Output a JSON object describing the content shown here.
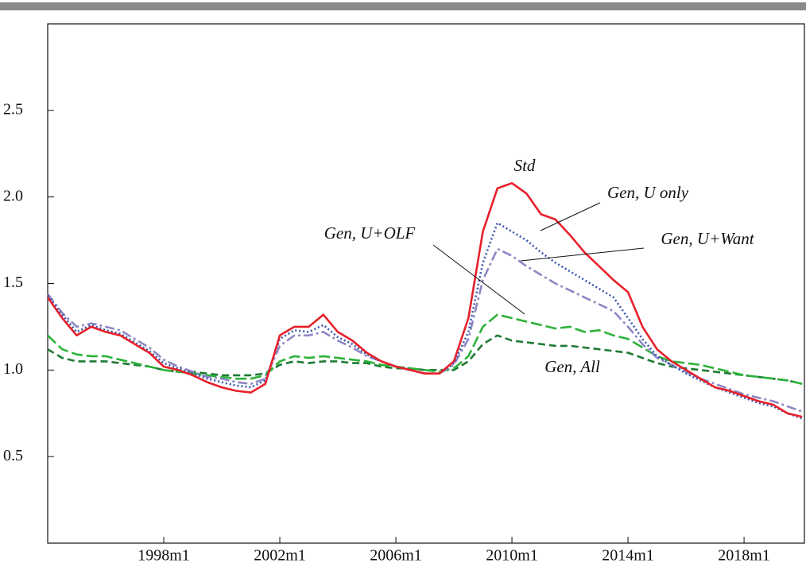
{
  "chart_data": {
    "type": "line",
    "x": [
      1994.0,
      1994.5,
      1995.0,
      1995.5,
      1996.0,
      1996.5,
      1997.0,
      1997.5,
      1998.0,
      1998.5,
      1999.0,
      1999.5,
      2000.0,
      2000.5,
      2001.0,
      2001.5,
      2002.0,
      2002.5,
      2003.0,
      2003.5,
      2004.0,
      2004.5,
      2005.0,
      2005.5,
      2006.0,
      2006.5,
      2007.0,
      2007.5,
      2008.0,
      2008.5,
      2009.0,
      2009.5,
      2010.0,
      2010.5,
      2011.0,
      2011.5,
      2012.0,
      2012.5,
      2013.0,
      2013.5,
      2014.0,
      2014.5,
      2015.0,
      2015.5,
      2016.0,
      2016.5,
      2017.0,
      2017.5,
      2018.0,
      2018.5,
      2019.0,
      2019.5,
      2020.0
    ],
    "series": [
      {
        "name": "Std",
        "color": "#e8202a",
        "values": [
          1.42,
          1.3,
          1.2,
          1.25,
          1.22,
          1.2,
          1.15,
          1.1,
          1.02,
          1.0,
          0.97,
          0.93,
          0.9,
          0.88,
          0.87,
          0.92,
          1.2,
          1.25,
          1.25,
          1.32,
          1.22,
          1.17,
          1.1,
          1.05,
          1.02,
          1.0,
          0.98,
          0.98,
          1.05,
          1.3,
          1.8,
          2.05,
          2.08,
          2.02,
          1.9,
          1.87,
          1.78,
          1.68,
          1.6,
          1.52,
          1.45,
          1.25,
          1.12,
          1.05,
          1.0,
          0.95,
          0.9,
          0.88,
          0.85,
          0.82,
          0.8,
          0.75,
          0.73
        ]
      },
      {
        "name": "Gen, U only",
        "color": "#3a55b0",
        "values": [
          1.43,
          1.32,
          1.22,
          1.26,
          1.23,
          1.21,
          1.16,
          1.11,
          1.04,
          1.01,
          0.98,
          0.95,
          0.93,
          0.91,
          0.9,
          0.94,
          1.18,
          1.23,
          1.22,
          1.26,
          1.19,
          1.15,
          1.09,
          1.05,
          1.02,
          1.0,
          0.98,
          0.98,
          1.04,
          1.22,
          1.62,
          1.85,
          1.8,
          1.75,
          1.68,
          1.62,
          1.57,
          1.52,
          1.47,
          1.42,
          1.3,
          1.18,
          1.08,
          1.03,
          0.98,
          0.94,
          0.9,
          0.87,
          0.84,
          0.81,
          0.79,
          0.75,
          0.72
        ]
      },
      {
        "name": "Gen, U+Want",
        "color": "#8c88c4",
        "values": [
          1.44,
          1.33,
          1.25,
          1.27,
          1.25,
          1.23,
          1.18,
          1.13,
          1.06,
          1.02,
          0.99,
          0.96,
          0.95,
          0.93,
          0.92,
          0.95,
          1.14,
          1.2,
          1.2,
          1.22,
          1.17,
          1.13,
          1.08,
          1.05,
          1.02,
          1.0,
          0.98,
          0.98,
          1.03,
          1.18,
          1.52,
          1.7,
          1.66,
          1.6,
          1.55,
          1.5,
          1.46,
          1.42,
          1.38,
          1.34,
          1.25,
          1.15,
          1.07,
          1.03,
          0.99,
          0.95,
          0.92,
          0.89,
          0.86,
          0.84,
          0.82,
          0.79,
          0.76
        ]
      },
      {
        "name": "Gen, U+OLF",
        "color": "#2db23a",
        "values": [
          1.2,
          1.12,
          1.09,
          1.08,
          1.08,
          1.06,
          1.04,
          1.02,
          1.0,
          0.99,
          0.98,
          0.97,
          0.96,
          0.95,
          0.95,
          0.97,
          1.05,
          1.08,
          1.07,
          1.08,
          1.07,
          1.06,
          1.05,
          1.03,
          1.02,
          1.01,
          1.0,
          0.99,
          1.01,
          1.08,
          1.25,
          1.32,
          1.3,
          1.28,
          1.26,
          1.24,
          1.25,
          1.22,
          1.23,
          1.2,
          1.18,
          1.13,
          1.08,
          1.05,
          1.04,
          1.03,
          1.01,
          0.99,
          0.97,
          0.96,
          0.95,
          0.94,
          0.92
        ]
      },
      {
        "name": "Gen, All",
        "color": "#1e7a34",
        "values": [
          1.12,
          1.07,
          1.05,
          1.05,
          1.05,
          1.04,
          1.03,
          1.02,
          1.0,
          0.99,
          0.99,
          0.98,
          0.97,
          0.97,
          0.97,
          0.98,
          1.03,
          1.05,
          1.04,
          1.05,
          1.05,
          1.04,
          1.04,
          1.02,
          1.01,
          1.01,
          1.0,
          1.0,
          1.0,
          1.05,
          1.15,
          1.2,
          1.17,
          1.16,
          1.15,
          1.14,
          1.14,
          1.13,
          1.12,
          1.11,
          1.1,
          1.07,
          1.04,
          1.02,
          1.01,
          1.0,
          0.99,
          0.98,
          0.97,
          0.96,
          0.95,
          0.94,
          0.92
        ]
      }
    ],
    "xlim": [
      1994,
      2020.08
    ],
    "xticks": [
      {
        "value": 1998,
        "label": "1998m1"
      },
      {
        "value": 2002,
        "label": "2002m1"
      },
      {
        "value": 2006,
        "label": "2006m1"
      },
      {
        "value": 2010,
        "label": "2010m1"
      },
      {
        "value": 2014,
        "label": "2014m1"
      },
      {
        "value": 2018,
        "label": "2018m1"
      }
    ],
    "ylim": [
      0,
      3
    ],
    "yticks": [
      0.5,
      {
        "value": 1,
        "label": "1.0"
      },
      1.5,
      {
        "value": 2,
        "label": "2.0"
      },
      2.5
    ]
  }
}
